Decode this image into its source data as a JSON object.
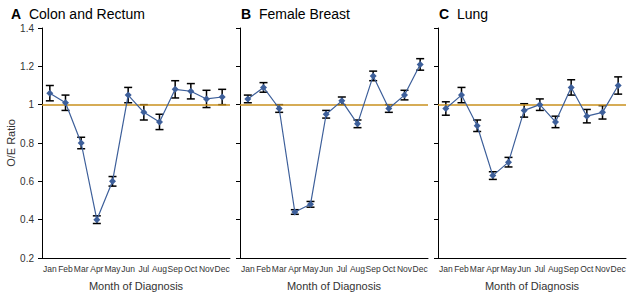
{
  "chart_data": [
    {
      "type": "line",
      "panel": "A",
      "title": "Colon and Rectum",
      "x_label": "Month of Diagnosis",
      "y_label": "O/E Ratio",
      "categories": [
        "Jan",
        "Feb",
        "Mar",
        "Apr",
        "May",
        "Jun",
        "Jul",
        "Aug",
        "Sep",
        "Oct",
        "Nov",
        "Dec"
      ],
      "values": [
        1.06,
        1.01,
        0.8,
        0.4,
        0.6,
        1.05,
        0.96,
        0.91,
        1.08,
        1.07,
        1.03,
        1.04
      ],
      "errors": [
        0.04,
        0.04,
        0.03,
        0.02,
        0.025,
        0.04,
        0.04,
        0.04,
        0.045,
        0.04,
        0.045,
        0.04
      ],
      "color": "#3d5f9a",
      "marker": "diamond",
      "line_style": "solid",
      "reference_line": {
        "value": 1,
        "color": "#c8901e"
      },
      "ylim": [
        0.2,
        1.4
      ],
      "yticks": [
        0.2,
        0.4,
        0.6,
        0.8,
        1,
        1.2,
        1.4
      ],
      "grid": false,
      "tick_labels": true
    },
    {
      "type": "line",
      "panel": "B",
      "title": "Female Breast",
      "x_label": "Month of Diagnosis",
      "categories": [
        "Jan",
        "Feb",
        "Mar",
        "Apr",
        "May",
        "Jun",
        "Jul",
        "Aug",
        "Sep",
        "Oct",
        "Nov",
        "Dec"
      ],
      "values": [
        1.03,
        1.09,
        0.98,
        0.44,
        0.48,
        0.95,
        1.02,
        0.9,
        1.15,
        0.98,
        1.05,
        1.21
      ],
      "errors": [
        0.02,
        0.025,
        0.02,
        0.012,
        0.015,
        0.02,
        0.02,
        0.02,
        0.025,
        0.02,
        0.025,
        0.03
      ],
      "color": "#3d5f9a",
      "marker": "diamond",
      "line_style": "solid",
      "reference_line": {
        "value": 1,
        "color": "#c8901e"
      },
      "ylim": [
        0.2,
        1.4
      ],
      "yticks": [
        0.2,
        0.4,
        0.6,
        0.8,
        1,
        1.2,
        1.4
      ],
      "grid": false,
      "tick_labels": "x"
    },
    {
      "type": "line",
      "panel": "C",
      "title": "Lung",
      "x_label": "Month of Diagnosis",
      "categories": [
        "Jan",
        "Feb",
        "Mar",
        "Apr",
        "May",
        "Jun",
        "Jul",
        "Aug",
        "Sep",
        "Oct",
        "Nov",
        "Dec"
      ],
      "values": [
        0.98,
        1.05,
        0.89,
        0.63,
        0.7,
        0.97,
        1.0,
        0.91,
        1.09,
        0.94,
        0.96,
        1.1
      ],
      "errors": [
        0.035,
        0.04,
        0.03,
        0.02,
        0.025,
        0.035,
        0.03,
        0.03,
        0.04,
        0.035,
        0.035,
        0.045
      ],
      "color": "#3d5f9a",
      "marker": "diamond",
      "line_style": "solid",
      "reference_line": {
        "value": 1,
        "color": "#c8901e"
      },
      "ylim": [
        0.2,
        1.4
      ],
      "yticks": [
        0.2,
        0.4,
        0.6,
        0.8,
        1,
        1.2,
        1.4
      ],
      "grid": false,
      "tick_labels": "x"
    }
  ]
}
